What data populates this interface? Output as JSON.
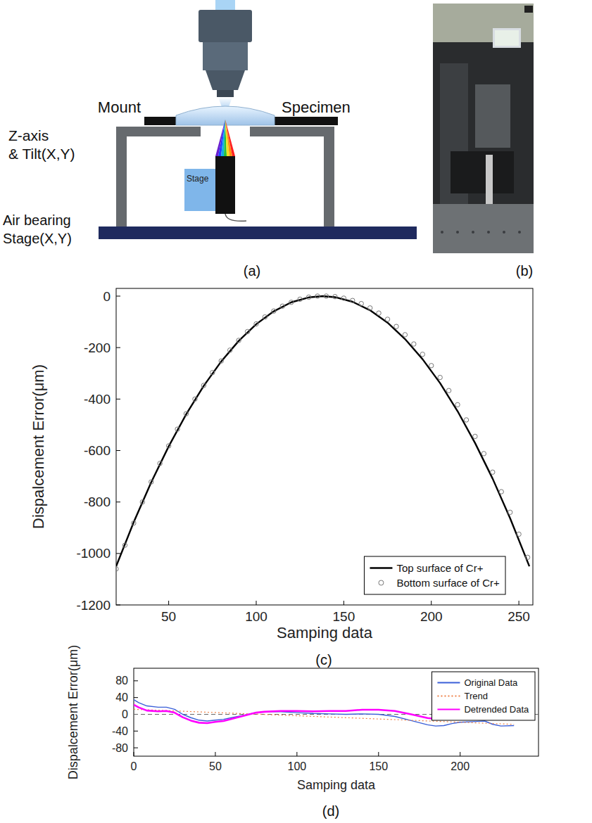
{
  "panel_labels": [
    "(a)",
    "(b)",
    "(c)",
    "(d)"
  ],
  "diagram": {
    "mount": "Mount",
    "specimen": "Specimen",
    "z_axis": [
      "Z-axis",
      "& Tilt(X,Y)"
    ],
    "stage": "Stage",
    "air_bearing": [
      "Air bearing",
      "Stage(X,Y)"
    ]
  },
  "chart_data": [
    {
      "type": "line",
      "x_label": "Samping data",
      "y_label": "Dispalcement Error(μm)",
      "xlim": [
        20,
        258
      ],
      "ylim": [
        -1200,
        30
      ],
      "xticks": [
        50,
        100,
        150,
        200,
        250
      ],
      "yticks": [
        -1200,
        -1000,
        -800,
        -600,
        -400,
        -200,
        0
      ],
      "grid": false,
      "legend": "lower right",
      "series": [
        {
          "name": "Top surface of Cr+",
          "type": "line",
          "color": "#000000",
          "line_style": "solid",
          "x": [
            20,
            30,
            40,
            50,
            60,
            70,
            80,
            90,
            100,
            110,
            120,
            130,
            138,
            145,
            155,
            165,
            175,
            185,
            195,
            205,
            215,
            225,
            235,
            245,
            256
          ],
          "values": [
            -1050,
            -879,
            -724,
            -584,
            -459,
            -349,
            -254,
            -174,
            -109,
            -59,
            -24,
            -5,
            0,
            -4,
            -22,
            -55,
            -103,
            -167,
            -245,
            -338,
            -447,
            -571,
            -709,
            -863,
            -1050
          ]
        },
        {
          "name": "Bottom surface of Cr+",
          "type": "scatter",
          "color": "#777777",
          "marker": "circle",
          "x": [
            20,
            25,
            30,
            35,
            40,
            45,
            50,
            55,
            60,
            65,
            70,
            75,
            80,
            85,
            90,
            95,
            100,
            105,
            110,
            115,
            120,
            125,
            130,
            135,
            140,
            145,
            150,
            155,
            160,
            165,
            170,
            175,
            180,
            185,
            190,
            195,
            200,
            205,
            210,
            215,
            220,
            225,
            230,
            235,
            240,
            245,
            250,
            255
          ],
          "values": [
            -1060,
            -968,
            -882,
            -800,
            -722,
            -650,
            -582,
            -517,
            -457,
            -400,
            -347,
            -297,
            -252,
            -210,
            -172,
            -138,
            -108,
            -81,
            -58,
            -39,
            -24,
            -12,
            -4,
            0,
            0,
            -2,
            -8,
            -17,
            -29,
            -46,
            -66,
            -90,
            -118,
            -150,
            -186,
            -226,
            -270,
            -316,
            -367,
            -422,
            -481,
            -545,
            -612,
            -684,
            -760,
            -840,
            -925,
            -1015
          ]
        }
      ]
    },
    {
      "type": "line",
      "x_label": "Samping data",
      "y_label": "Dispalcement Error(μm)",
      "xlim": [
        0,
        248
      ],
      "ylim": [
        -100,
        110
      ],
      "xticks": [
        0,
        50,
        100,
        150,
        200
      ],
      "yticks": [
        -80,
        -40,
        0,
        40,
        80
      ],
      "grid": false,
      "legend": "upper right",
      "reference_line": 0,
      "series": [
        {
          "name": "Original Data",
          "type": "line",
          "color": "#3a5fd8",
          "line_style": "solid",
          "x": [
            0,
            3,
            8,
            15,
            20,
            25,
            30,
            35,
            40,
            45,
            50,
            55,
            60,
            65,
            70,
            75,
            80,
            90,
            100,
            110,
            120,
            130,
            140,
            150,
            160,
            170,
            180,
            185,
            190,
            195,
            200,
            210,
            215,
            220,
            225,
            233
          ],
          "values": [
            35,
            28,
            20,
            17,
            17,
            12,
            0,
            -8,
            -14,
            -16,
            -14,
            -12,
            -8,
            -4,
            0,
            4,
            6,
            6,
            4,
            2,
            1,
            0,
            1,
            0,
            -5,
            -15,
            -25,
            -28,
            -27,
            -22,
            -19,
            -17,
            -16,
            -24,
            -28,
            -27
          ]
        },
        {
          "name": "Trend",
          "type": "line",
          "color": "#ee8048",
          "line_style": "dotted",
          "x": [
            0,
            233
          ],
          "values": [
            12,
            -24
          ]
        },
        {
          "name": "Detrended Data",
          "type": "line",
          "color": "#ff00ff",
          "line_style": "solid",
          "x": [
            0,
            3,
            8,
            15,
            20,
            25,
            30,
            35,
            40,
            45,
            50,
            55,
            60,
            65,
            70,
            75,
            80,
            90,
            100,
            110,
            120,
            130,
            140,
            150,
            160,
            170,
            180,
            185,
            190,
            195,
            200,
            210,
            215,
            220,
            225,
            233
          ],
          "values": [
            23,
            16.5,
            9,
            7,
            8,
            4,
            -7,
            -15,
            -20,
            -21,
            -18,
            -16,
            -11,
            -6,
            -1,
            4,
            6,
            8,
            8,
            7,
            8,
            8,
            11,
            11,
            8,
            0,
            -9,
            -11,
            -10,
            -4,
            0,
            3,
            4,
            -2,
            -5,
            -3
          ]
        }
      ]
    }
  ]
}
